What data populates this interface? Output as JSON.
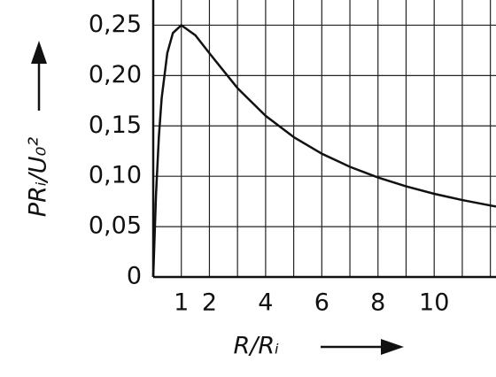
{
  "chart_data": {
    "type": "line",
    "x_label": "R/Rᵢ",
    "y_label": "PRᵢ/U₀²",
    "x": [
      0,
      0.1,
      0.2,
      0.3,
      0.5,
      0.7,
      1,
      1.5,
      2,
      3,
      4,
      5,
      6,
      7,
      8,
      9,
      10,
      11,
      12,
      12.2
    ],
    "series": [
      {
        "color": "#111111",
        "values": [
          0,
          0.0826,
          0.1389,
          0.1775,
          0.2222,
          0.2422,
          0.25,
          0.24,
          0.2222,
          0.1875,
          0.16,
          0.1389,
          0.1224,
          0.1094,
          0.0988,
          0.09,
          0.0826,
          0.0764,
          0.071,
          0.0699
        ]
      }
    ],
    "xlim": [
      0,
      12.2
    ],
    "ylim": [
      0,
      0.275
    ],
    "xticks": [
      1,
      2,
      4,
      6,
      8,
      10
    ],
    "xgrid": [
      1,
      2,
      3,
      4,
      5,
      6,
      7,
      8,
      9,
      10,
      11,
      12
    ],
    "yticks": [
      0,
      {
        "value": 0.05,
        "label": "0,05"
      },
      {
        "value": 0.1,
        "label": "0,10"
      },
      {
        "value": 0.15,
        "label": "0,15"
      },
      {
        "value": 0.2,
        "label": "0,20"
      },
      {
        "value": 0.25,
        "label": "0,25"
      }
    ],
    "grid": true
  }
}
